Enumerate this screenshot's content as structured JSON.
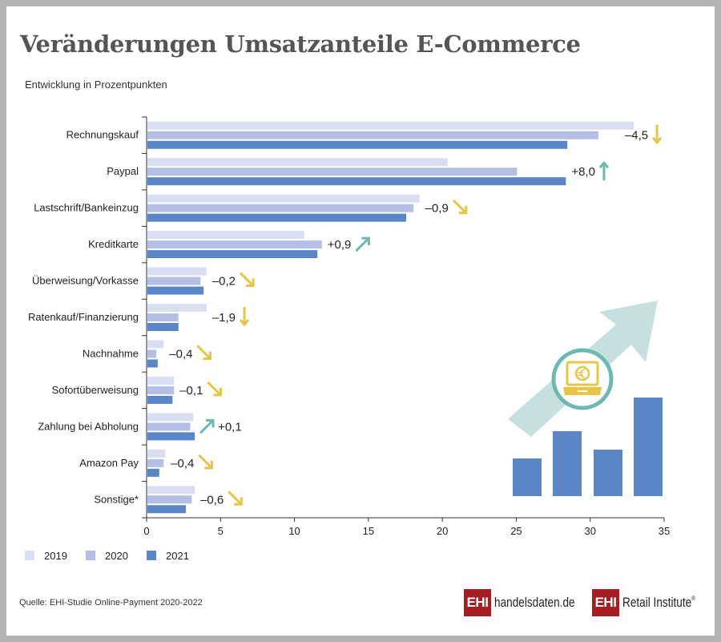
{
  "title": "Veränderungen Umsatzanteile E-Commerce",
  "subtitle": "Entwicklung in Prozentpunkten",
  "source": "Quelle: EHI-Studie Online-Payment 2020-2022",
  "logos": {
    "left_badge": "EHI",
    "left_text": "handelsdaten",
    "left_dot": ".",
    "left_tld": "de",
    "right_badge": "EHI",
    "right_text": "Retail Institute",
    "right_reg": "®"
  },
  "colors": {
    "2019": "#d9def2",
    "2020": "#b4bfe6",
    "2021": "#5a86c8",
    "down": "#e8c447",
    "up": "#6db8b0",
    "text": "#222222"
  },
  "chart_data": {
    "type": "bar",
    "orientation": "horizontal",
    "title": "Veränderungen Umsatzanteile E-Commerce",
    "xlabel": "",
    "ylabel": "",
    "xlim": [
      0,
      35
    ],
    "xticks": [
      0,
      5,
      10,
      15,
      20,
      25,
      30,
      35
    ],
    "legend_position": "bottom-left",
    "categories": [
      "Rechnungskauf",
      "Paypal",
      "Lastschrift/Bankeinzug",
      "Kreditkarte",
      "Überweisung/Vorkasse",
      "Ratenkauf/Finanzierung",
      "Nachnahme",
      "Sofortüberweisung",
      "Zahlung bei Abholung",
      "Amazon Pay",
      "Sonstige*"
    ],
    "series": [
      {
        "name": "2019",
        "values": [
          32.9,
          20.3,
          18.4,
          10.6,
          4.0,
          4.0,
          1.1,
          1.8,
          3.1,
          1.2,
          3.2
        ]
      },
      {
        "name": "2020",
        "values": [
          30.5,
          25.0,
          18.0,
          11.8,
          3.6,
          2.1,
          0.6,
          1.8,
          2.9,
          1.1,
          3.0
        ]
      },
      {
        "name": "2021",
        "values": [
          28.4,
          28.3,
          17.5,
          11.5,
          3.8,
          2.1,
          0.7,
          1.7,
          3.2,
          0.8,
          2.6
        ]
      }
    ],
    "annotations": [
      {
        "label": "–4,5",
        "arrow": "down"
      },
      {
        "label": "+8,0",
        "arrow": "up"
      },
      {
        "label": "–0,9",
        "arrow": "down-right"
      },
      {
        "label": "+0,9",
        "arrow": "up-right"
      },
      {
        "label": "–0,2",
        "arrow": "down-right"
      },
      {
        "label": "–1,9",
        "arrow": "down"
      },
      {
        "label": "–0,4",
        "arrow": "down-right"
      },
      {
        "label": "–0,1",
        "arrow": "down-right"
      },
      {
        "label": "+0,1",
        "arrow": "up-right",
        "arrow_first": true
      },
      {
        "label": "–0,4",
        "arrow": "down-right"
      },
      {
        "label": "–0,6",
        "arrow": "down-right"
      }
    ]
  }
}
